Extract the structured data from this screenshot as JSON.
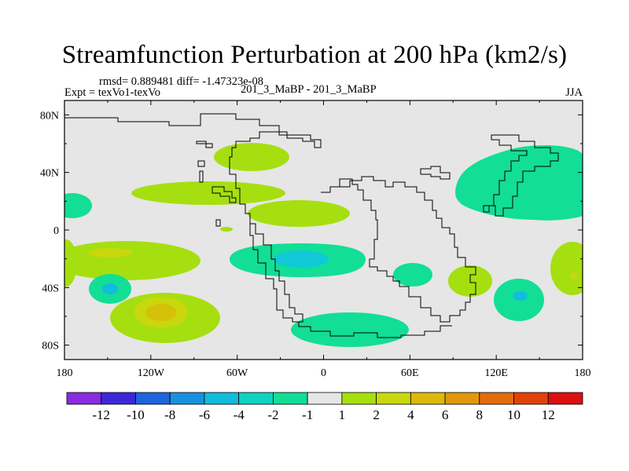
{
  "title": "Streamfunction Perturbation at 200 hPa (km2/s)",
  "stats_line": "rmsd= 0.889481 diff= -1.47323e-08",
  "experiment_label": "Expt = texVo1-texVo",
  "case_label": "201_3_MaBP - 201_3_MaBP",
  "season": "JJA",
  "chart_data": {
    "type": "heatmap",
    "variable": "Streamfunction Perturbation at 200 hPa",
    "units": "km2/s",
    "xlim": [
      -180,
      180
    ],
    "ylim": [
      -90,
      90
    ],
    "x_ticks": [
      {
        "value": -180,
        "label": "180"
      },
      {
        "value": -120,
        "label": "120W"
      },
      {
        "value": -60,
        "label": "60W"
      },
      {
        "value": 0,
        "label": "0"
      },
      {
        "value": 60,
        "label": "60E"
      },
      {
        "value": 120,
        "label": "120E"
      },
      {
        "value": 180,
        "label": "180"
      }
    ],
    "y_ticks": [
      {
        "value": 80,
        "label": "80N"
      },
      {
        "value": 40,
        "label": "40N"
      },
      {
        "value": 0,
        "label": "0"
      },
      {
        "value": -40,
        "label": "40S"
      },
      {
        "value": -80,
        "label": "80S"
      }
    ],
    "colorbar": {
      "colors": [
        "#8a2be2",
        "#3c28d8",
        "#1e64dc",
        "#1a90e0",
        "#11bcdc",
        "#10d2c0",
        "#12de96",
        "#e6e6e6",
        "#a6df10",
        "#c8d80c",
        "#dcb80a",
        "#e2960a",
        "#e26c0a",
        "#e0420a",
        "#dc1010"
      ],
      "labels": [
        "-12",
        "-10",
        "-8",
        "-6",
        "-4",
        "-2",
        "-1",
        "1",
        "2",
        "4",
        "6",
        "8",
        "10",
        "12"
      ]
    },
    "anomalies": [
      {
        "name": "N Atlantic high",
        "lon": -52,
        "lat": 55,
        "level": "1 to 2"
      },
      {
        "name": "Central Atlantic band",
        "lon": -80,
        "lat": 24,
        "level": "1 to 2"
      },
      {
        "name": "E Pacific equatorial",
        "lon": -168,
        "lat": 20,
        "level": "-2 to -1"
      },
      {
        "name": "NW Pacific / E Asia low",
        "lon": 127,
        "lat": 28,
        "level": "-2 to -1"
      },
      {
        "name": "S Atlantic low",
        "lon": -20,
        "lat": -20,
        "level": "-4 to -2"
      },
      {
        "name": "SE Pacific high",
        "lon": -117,
        "lat": -57,
        "level": "4 to 6"
      },
      {
        "name": "S Pacific low",
        "lon": -150,
        "lat": -39,
        "level": "-4 to -2"
      },
      {
        "name": "Southern Ocean low",
        "lon": 10,
        "lat": -68,
        "level": "-2 to -1"
      },
      {
        "name": "SW Indian Ocean low",
        "lon": 57,
        "lat": -31,
        "level": "-2 to -1"
      },
      {
        "name": "S Indian high",
        "lon": 99,
        "lat": -34,
        "level": "1 to 2"
      },
      {
        "name": "Australia south low",
        "lon": 140,
        "lat": -43,
        "level": "-4 to -2"
      },
      {
        "name": "W Pacific south high",
        "lon": 173,
        "lat": -30,
        "level": "2 to 4"
      },
      {
        "name": "Tropical S Pacific high",
        "lon": -155,
        "lat": -15,
        "level": "2 to 4"
      },
      {
        "name": "Arabian Sea high",
        "lon": -68,
        "lat": 2,
        "level": "1 to 2"
      }
    ]
  }
}
